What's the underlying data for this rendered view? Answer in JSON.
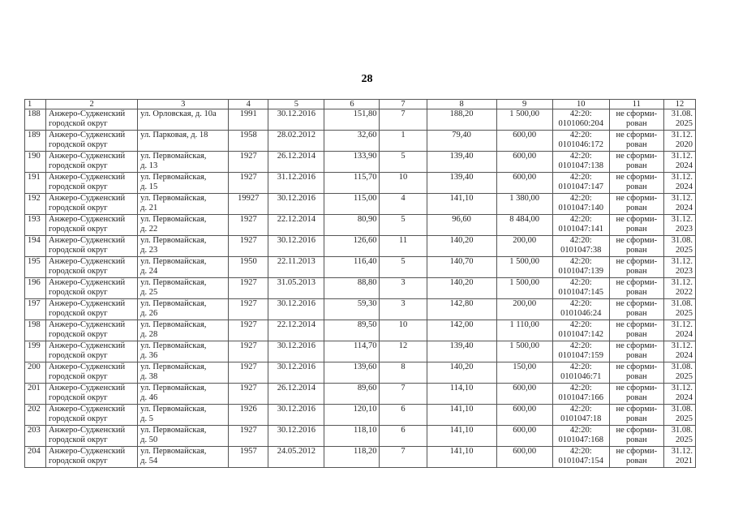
{
  "page_number": "28",
  "headers": [
    "1",
    "2",
    "3",
    "4",
    "5",
    "6",
    "7",
    "8",
    "9",
    "10",
    "11",
    "12"
  ],
  "rows": [
    [
      "188",
      "Анжеро-Судженский\nгородской округ",
      "ул. Орловская, д. 10а",
      "1991",
      "30.12.2016",
      "151,80",
      "7",
      "188,20",
      "1 500,00",
      "42:20:\n0101060:204",
      "не сформи-\nрован",
      "31.08.\n2025"
    ],
    [
      "189",
      "Анжеро-Судженский\nгородской округ",
      "ул. Парковая, д. 18",
      "1958",
      "28.02.2012",
      "32,60",
      "1",
      "79,40",
      "600,00",
      "42:20:\n0101046:172",
      "не сформи-\nрован",
      "31.12.\n2020"
    ],
    [
      "190",
      "Анжеро-Судженский\nгородской округ",
      "ул. Первомайская,\nд. 13",
      "1927",
      "26.12.2014",
      "133,90",
      "5",
      "139,40",
      "600,00",
      "42:20:\n0101047:138",
      "не сформи-\nрован",
      "31.12.\n2024"
    ],
    [
      "191",
      "Анжеро-Судженский\nгородской округ",
      "ул. Первомайская,\nд. 15",
      "1927",
      "31.12.2016",
      "115,70",
      "10",
      "139,40",
      "600,00",
      "42:20:\n0101047:147",
      "не сформи-\nрован",
      "31.12.\n2024"
    ],
    [
      "192",
      "Анжеро-Судженский\nгородской округ",
      "ул. Первомайская,\nд. 21",
      "19927",
      "30.12.2016",
      "115,00",
      "4",
      "141,10",
      "1 380,00",
      "42:20:\n0101047:140",
      "не сформи-\nрован",
      "31.12.\n2024"
    ],
    [
      "193",
      "Анжеро-Судженский\nгородской округ",
      "ул. Первомайская,\nд. 22",
      "1927",
      "22.12.2014",
      "80,90",
      "5",
      "96,60",
      "8 484,00",
      "42:20:\n0101047:141",
      "не сформи-\nрован",
      "31.12.\n2023"
    ],
    [
      "194",
      "Анжеро-Судженский\nгородской округ",
      "ул. Первомайская,\nд. 23",
      "1927",
      "30.12.2016",
      "126,60",
      "11",
      "140,20",
      "200,00",
      "42:20:\n0101047:38",
      "не сформи-\nрован",
      "31.08.\n2025"
    ],
    [
      "195",
      "Анжеро-Судженский\nгородской округ",
      "ул. Первомайская,\nд. 24",
      "1950",
      "22.11.2013",
      "116,40",
      "5",
      "140,70",
      "1 500,00",
      "42:20:\n0101047:139",
      "не сформи-\nрован",
      "31.12.\n2023"
    ],
    [
      "196",
      "Анжеро-Судженский\nгородской округ",
      "ул. Первомайская,\nд. 25",
      "1927",
      "31.05.2013",
      "88,80",
      "3",
      "140,20",
      "1 500,00",
      "42:20:\n0101047:145",
      "не сформи-\nрован",
      "31.12.\n2022"
    ],
    [
      "197",
      "Анжеро-Судженский\nгородской округ",
      "ул. Первомайская,\nд. 26",
      "1927",
      "30.12.2016",
      "59,30",
      "3",
      "142,80",
      "200,00",
      "42:20:\n0101046:24",
      "не сформи-\nрован",
      "31.08.\n2025"
    ],
    [
      "198",
      "Анжеро-Судженский\nгородской округ",
      "ул. Первомайская,\nд. 28",
      "1927",
      "22.12.2014",
      "89,50",
      "10",
      "142,00",
      "1 110,00",
      "42:20:\n0101047:142",
      "не сформи-\nрован",
      "31.12.\n2024"
    ],
    [
      "199",
      "Анжеро-Судженский\nгородской округ",
      "ул. Первомайская,\nд. 36",
      "1927",
      "30.12.2016",
      "114,70",
      "12",
      "139,40",
      "1 500,00",
      "42:20:\n0101047:159",
      "не сформи-\nрован",
      "31.12.\n2024"
    ],
    [
      "200",
      "Анжеро-Судженский\nгородской округ",
      "ул. Первомайская,\nд. 38",
      "1927",
      "30.12.2016",
      "139,60",
      "8",
      "140,20",
      "150,00",
      "42:20:\n0101046:71",
      "не сформи-\nрован",
      "31.08.\n2025"
    ],
    [
      "201",
      "Анжеро-Судженский\nгородской округ",
      "ул. Первомайская,\nд. 46",
      "1927",
      "26.12.2014",
      "89,60",
      "7",
      "114,10",
      "600,00",
      "42:20:\n0101047:166",
      "не сформи-\nрован",
      "31.12.\n2024"
    ],
    [
      "202",
      "Анжеро-Судженский\nгородской округ",
      "ул. Первомайская,\nд. 5",
      "1926",
      "30.12.2016",
      "120,10",
      "6",
      "141,10",
      "600,00",
      "42:20:\n0101047:18",
      "не сформи-\nрован",
      "31.08.\n2025"
    ],
    [
      "203",
      "Анжеро-Судженский\nгородской округ",
      "ул. Первомайская,\nд. 50",
      "1927",
      "30.12.2016",
      "118,10",
      "6",
      "141,10",
      "600,00",
      "42:20:\n0101047:168",
      "не сформи-\nрован",
      "31.08.\n2025"
    ],
    [
      "204",
      "Анжеро-Судженский\nгородской округ",
      "ул. Первомайская,\nд. 54",
      "1957",
      "24.05.2012",
      "118,20",
      "7",
      "141,10",
      "600,00",
      "42:20:\n0101047:154",
      "не сформи-\nрован",
      "31.12.\n2021"
    ]
  ]
}
